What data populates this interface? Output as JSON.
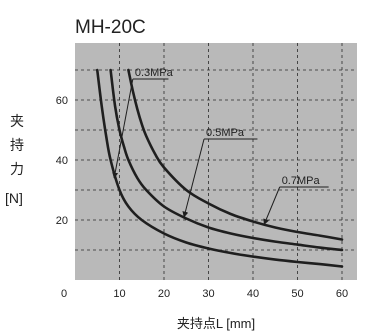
{
  "chart_data": {
    "type": "line",
    "title": "MH-20C",
    "ylabel_chars": [
      "夹",
      "持",
      "力"
    ],
    "yunit": "[N]",
    "xlabel": "夹持点L [mm]",
    "xlim": [
      0,
      60
    ],
    "ylim": [
      0,
      70
    ],
    "xticks": [
      0,
      10,
      20,
      30,
      40,
      50,
      60
    ],
    "yticks": [
      20,
      40,
      60
    ],
    "grid": "dashed",
    "background": "#b9b9b9",
    "line_color": "#1f1f1f",
    "series": [
      {
        "name": "0.3MPa",
        "x": [
          5,
          6,
          7,
          8,
          10,
          12,
          15,
          20,
          25,
          30,
          35,
          40,
          45,
          50,
          55,
          60
        ],
        "y": [
          70,
          58,
          48,
          40,
          30,
          24.5,
          20,
          15.5,
          12.5,
          10.5,
          9,
          7.8,
          6.8,
          6,
          5.3,
          4.5
        ]
      },
      {
        "name": "0.5MPa",
        "x": [
          8,
          9,
          10,
          11,
          12,
          14,
          16,
          20,
          25,
          30,
          35,
          40,
          45,
          50,
          55,
          60
        ],
        "y": [
          70,
          58,
          50,
          44.5,
          40,
          34,
          30,
          24.5,
          20.5,
          17.5,
          15.5,
          14,
          12.8,
          11.8,
          10.8,
          10
        ]
      },
      {
        "name": "0.7MPa",
        "x": [
          12,
          13,
          14,
          15,
          16,
          18,
          20,
          25,
          30,
          35,
          40,
          45,
          50,
          55,
          60
        ],
        "y": [
          70,
          63,
          57,
          52,
          48,
          42,
          37.5,
          30,
          25.5,
          22,
          19.5,
          17.5,
          16,
          14.8,
          13.5
        ]
      }
    ],
    "annotations": [
      {
        "text": "0.3MPa",
        "series": "0.3MPa",
        "label_x": 13,
        "label_y": 67,
        "line_end_x": 21,
        "point_x": 8.8,
        "point_y": 34
      },
      {
        "text": "0.5MPa",
        "series": "0.5MPa",
        "label_x": 29,
        "label_y": 47,
        "line_end_x": 41,
        "point_x": 24.5,
        "point_y": 21
      },
      {
        "text": "0.7MPa",
        "series": "0.7MPa",
        "label_x": 46,
        "label_y": 31,
        "line_end_x": 57,
        "point_x": 42.5,
        "point_y": 18.5
      }
    ]
  }
}
